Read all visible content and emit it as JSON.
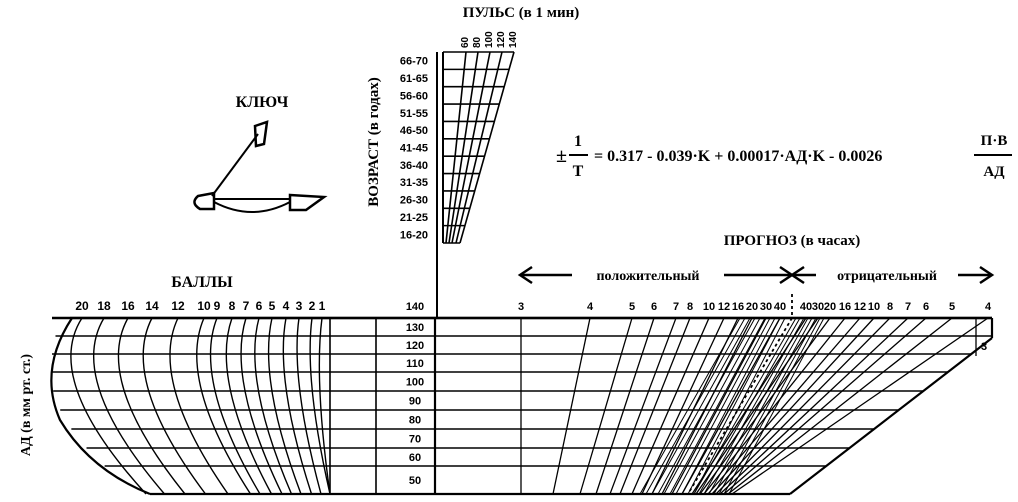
{
  "pulse": {
    "title": "ПУЛЬС (в 1 мин)",
    "ticks": [
      "60",
      "80",
      "100",
      "120",
      "140"
    ]
  },
  "age": {
    "title": "ВОЗРАСТ (в годах)",
    "groups": [
      "66-70",
      "61-65",
      "56-60",
      "51-55",
      "46-50",
      "41-45",
      "36-40",
      "31-35",
      "26-30",
      "21-25",
      "16-20"
    ]
  },
  "key": {
    "title": "КЛЮЧ"
  },
  "formula": {
    "pm": "±",
    "one": "1",
    "t": "T",
    "rhs": "= 0.317 - 0.039·K + 0.00017·АД·K - 0.0026",
    "frac_num": "П·B",
    "frac_den": "АД"
  },
  "prognosis": {
    "title": "ПРОГНОЗ (в часах)",
    "positive": "положительный",
    "negative": "отрицательный",
    "positive_hours": [
      "3",
      "4",
      "5",
      "6",
      "7",
      "8",
      "10",
      "12",
      "16",
      "20",
      "30",
      "40"
    ],
    "negative_hours": [
      "40",
      "30",
      "20",
      "16",
      "12",
      "10",
      "8",
      "7",
      "6",
      "5",
      "4"
    ],
    "right_edge_label": "3"
  },
  "scores": {
    "title": "БАЛЛЫ",
    "labels": [
      "20",
      "18",
      "16",
      "14",
      "12",
      "10",
      "9",
      "8",
      "7",
      "6",
      "5",
      "4",
      "3",
      "2",
      "1"
    ]
  },
  "bp": {
    "title": "АД (в мм рт. ст.)",
    "top": "140",
    "values": [
      "130",
      "120",
      "110",
      "100",
      "90",
      "80",
      "70",
      "60",
      "50"
    ]
  }
}
